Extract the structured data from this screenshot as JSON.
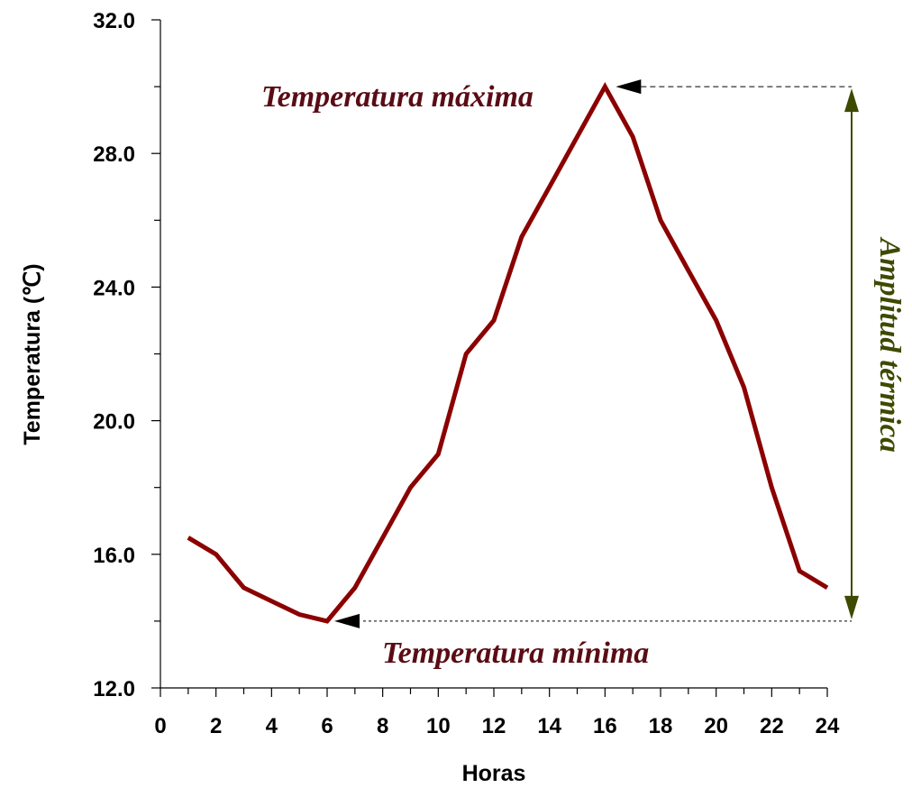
{
  "chart_data": {
    "type": "line",
    "xlabel": "Horas",
    "ylabel": "Temperatura (℃)",
    "xlim": [
      0,
      24
    ],
    "ylim": [
      12,
      32
    ],
    "xticks": [
      "0",
      "2",
      "4",
      "6",
      "8",
      "10",
      "12",
      "14",
      "16",
      "18",
      "20",
      "22",
      "24"
    ],
    "yticks": [
      "12.0",
      "16.0",
      "20.0",
      "24.0",
      "28.0",
      "32.0"
    ],
    "grid": false,
    "series": [
      {
        "x": [
          1,
          2,
          3,
          4,
          5,
          6,
          7,
          8,
          9,
          10,
          11,
          12,
          13,
          14,
          15,
          16,
          17,
          18,
          19,
          20,
          21,
          22,
          23,
          24
        ],
        "values": [
          16.5,
          16.0,
          15.0,
          14.6,
          14.2,
          14.0,
          15.0,
          16.5,
          18.0,
          19.0,
          22.0,
          23.0,
          25.5,
          27.0,
          28.5,
          30.0,
          28.5,
          26.0,
          24.5,
          23.0,
          21.0,
          18.0,
          15.5,
          15.0
        ],
        "color": "#8b0000"
      }
    ],
    "annotations": {
      "max_label": "Temperatura máxima",
      "min_label": "Temperatura mínima",
      "range_label": "Amplitud térmica",
      "max_point": {
        "x": 16,
        "y": 30.0
      },
      "min_point": {
        "x": 6,
        "y": 14.0
      }
    },
    "colors": {
      "line": "#8b0000",
      "annotation_text": "#5a0c14",
      "range_arrow": "#3d4a00",
      "axis": "#000000"
    }
  }
}
